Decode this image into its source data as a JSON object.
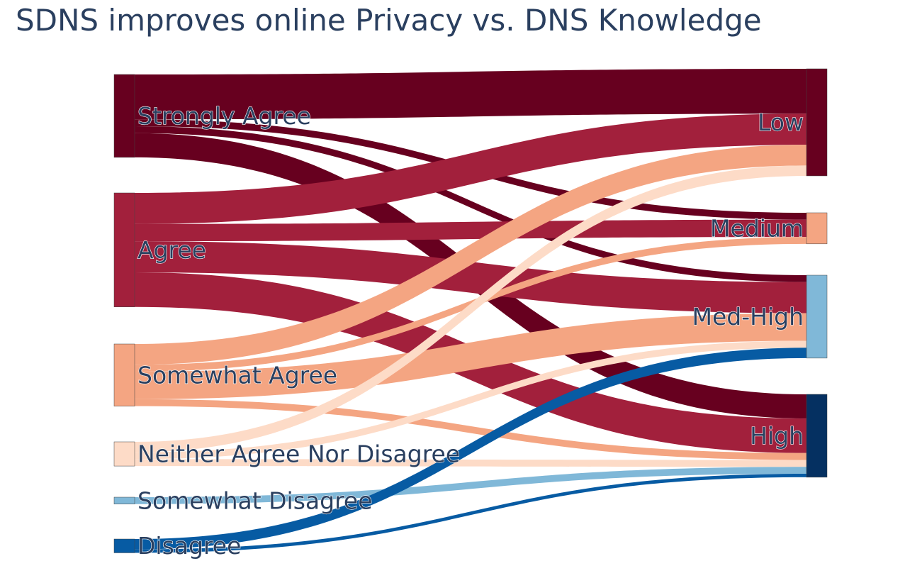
{
  "chart_data": {
    "type": "sankey",
    "title": "SDNS improves online Privacy vs. DNS Knowledge",
    "sources": [
      {
        "name": "Strongly Agree",
        "color": "#67001f"
      },
      {
        "name": "Agree",
        "color": "#a2203c"
      },
      {
        "name": "Somewhat Agree",
        "color": "#f4a582"
      },
      {
        "name": "Neither Agree Nor Disagree",
        "color": "#fddbc7"
      },
      {
        "name": "Somewhat Disagree",
        "color": "#80b8d8"
      },
      {
        "name": "Disagree",
        "color": "#075ba3"
      }
    ],
    "targets": [
      {
        "name": "Low",
        "color": "#67001f"
      },
      {
        "name": "Medium",
        "color": "#f4a582"
      },
      {
        "name": "Med-High",
        "color": "#80b8d8"
      },
      {
        "name": "High",
        "color": "#053061"
      }
    ],
    "links": [
      {
        "source": "Strongly Agree",
        "target": "Low",
        "value": 13
      },
      {
        "source": "Strongly Agree",
        "target": "Medium",
        "value": 2
      },
      {
        "source": "Strongly Agree",
        "target": "Med-High",
        "value": 2
      },
      {
        "source": "Strongly Agree",
        "target": "High",
        "value": 7
      },
      {
        "source": "Agree",
        "target": "Low",
        "value": 9
      },
      {
        "source": "Agree",
        "target": "Medium",
        "value": 5
      },
      {
        "source": "Agree",
        "target": "Med-High",
        "value": 9
      },
      {
        "source": "Agree",
        "target": "High",
        "value": 10
      },
      {
        "source": "Somewhat Agree",
        "target": "Low",
        "value": 6
      },
      {
        "source": "Somewhat Agree",
        "target": "Medium",
        "value": 2
      },
      {
        "source": "Somewhat Agree",
        "target": "Med-High",
        "value": 8
      },
      {
        "source": "Somewhat Agree",
        "target": "High",
        "value": 2
      },
      {
        "source": "Neither Agree Nor Disagree",
        "target": "Low",
        "value": 3
      },
      {
        "source": "Neither Agree Nor Disagree",
        "target": "Med-High",
        "value": 2
      },
      {
        "source": "Neither Agree Nor Disagree",
        "target": "High",
        "value": 2
      },
      {
        "source": "Somewhat Disagree",
        "target": "High",
        "value": 2
      },
      {
        "source": "Disagree",
        "target": "Med-High",
        "value": 3
      },
      {
        "source": "Disagree",
        "target": "High",
        "value": 1
      }
    ]
  }
}
